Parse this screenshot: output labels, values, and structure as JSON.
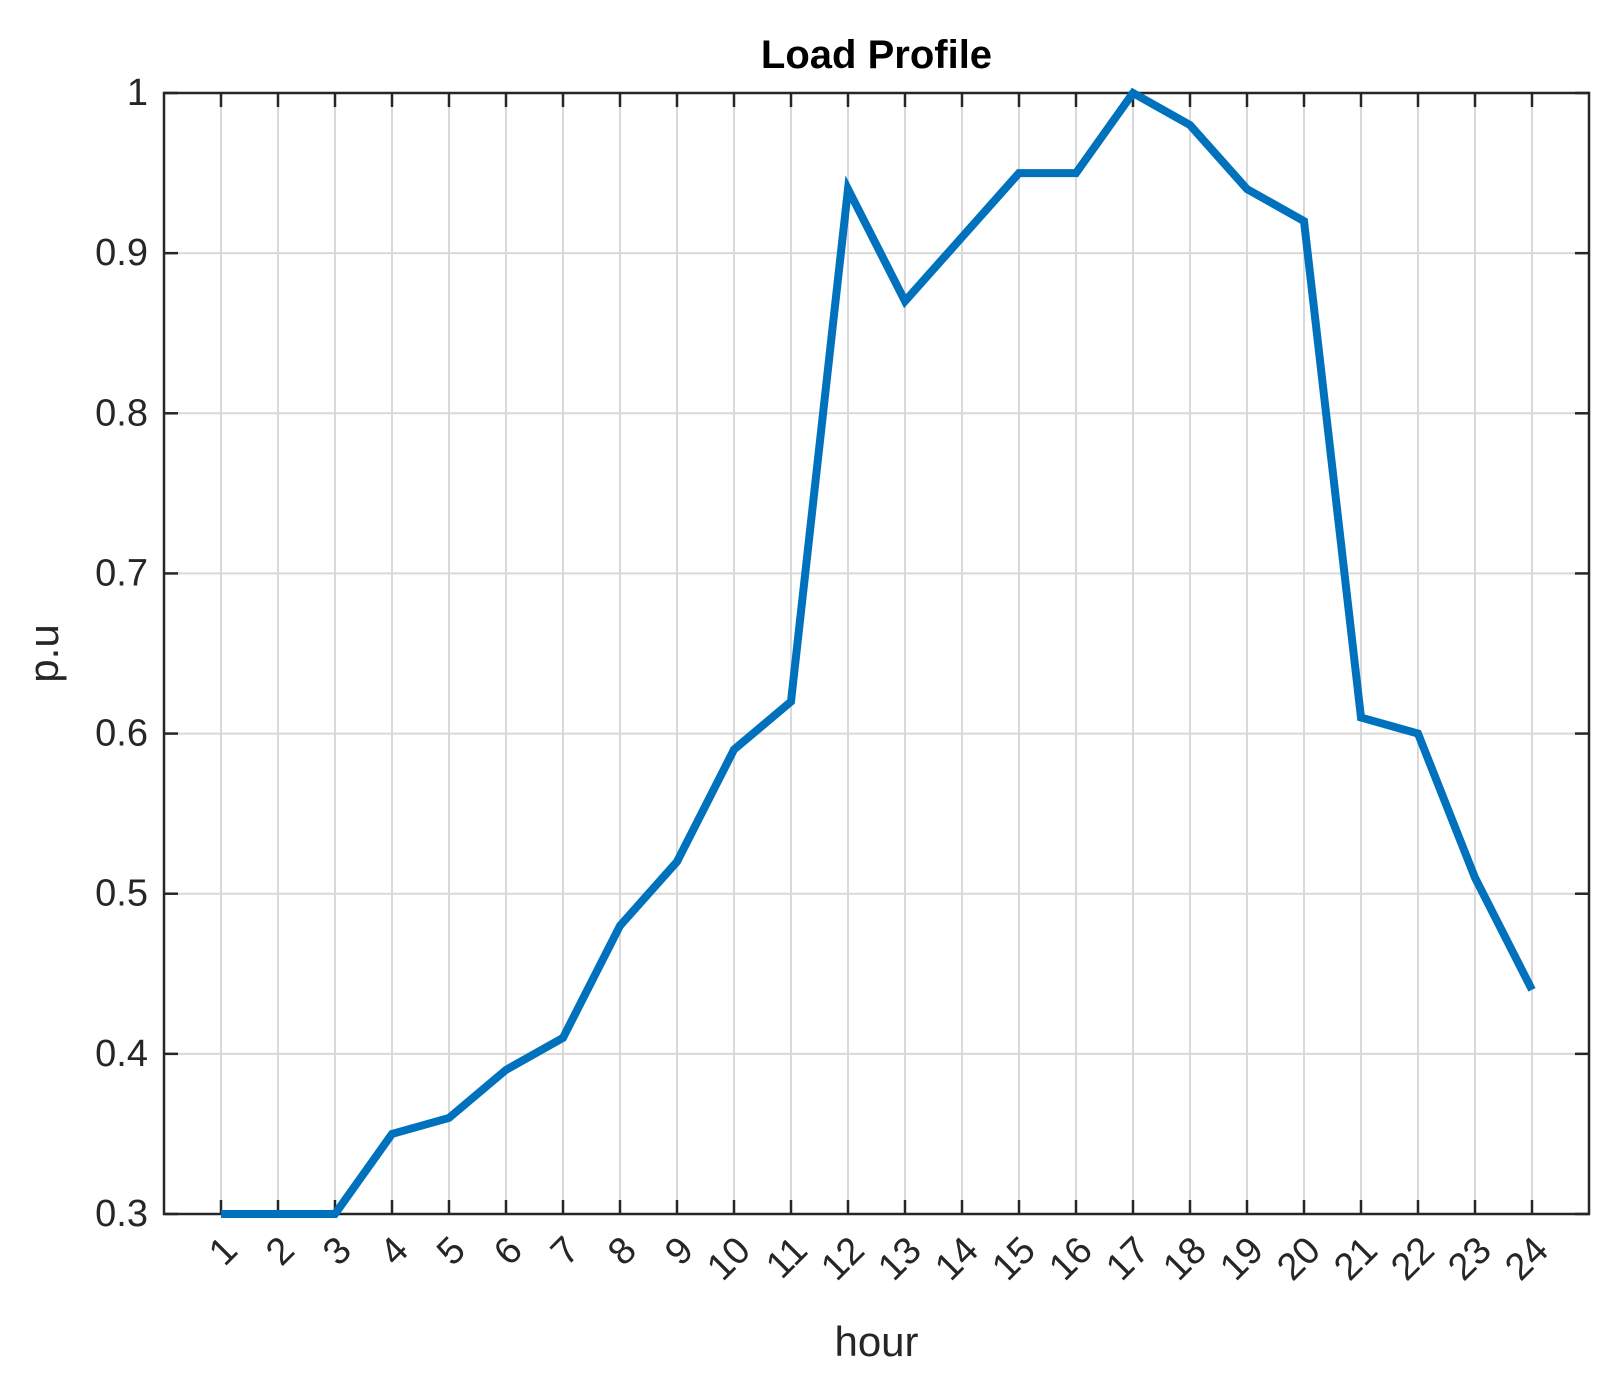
{
  "chart_data": {
    "type": "line",
    "title": "Load Profile",
    "xlabel": "hour",
    "ylabel": "p.u",
    "x": [
      1,
      2,
      3,
      4,
      5,
      6,
      7,
      8,
      9,
      10,
      11,
      12,
      13,
      14,
      15,
      16,
      17,
      18,
      19,
      20,
      21,
      22,
      23,
      24
    ],
    "x_tick_labels": [
      "1",
      "2",
      "3",
      "4",
      "5",
      "6",
      "7",
      "8",
      "9",
      "10",
      "11",
      "12",
      "13",
      "14",
      "15",
      "16",
      "17",
      "18",
      "19",
      "20",
      "21",
      "22",
      "23",
      "24"
    ],
    "y_tick_labels": [
      "0.3",
      "0.4",
      "0.5",
      "0.6",
      "0.7",
      "0.8",
      "0.9",
      "1"
    ],
    "y_ticks": [
      0.3,
      0.4,
      0.5,
      0.6,
      0.7,
      0.8,
      0.9,
      1.0
    ],
    "series": [
      {
        "values": [
          0.3,
          0.3,
          0.3,
          0.35,
          0.36,
          0.39,
          0.41,
          0.48,
          0.52,
          0.59,
          0.62,
          0.94,
          0.87,
          0.91,
          0.95,
          0.95,
          1.0,
          0.98,
          0.94,
          0.92,
          0.61,
          0.6,
          0.51,
          0.44
        ],
        "color": "#0072BD"
      }
    ],
    "xlim": [
      0,
      25
    ],
    "ylim": [
      0.3,
      1.0
    ],
    "grid": true,
    "x_tick_rotation": "45 degrees"
  }
}
